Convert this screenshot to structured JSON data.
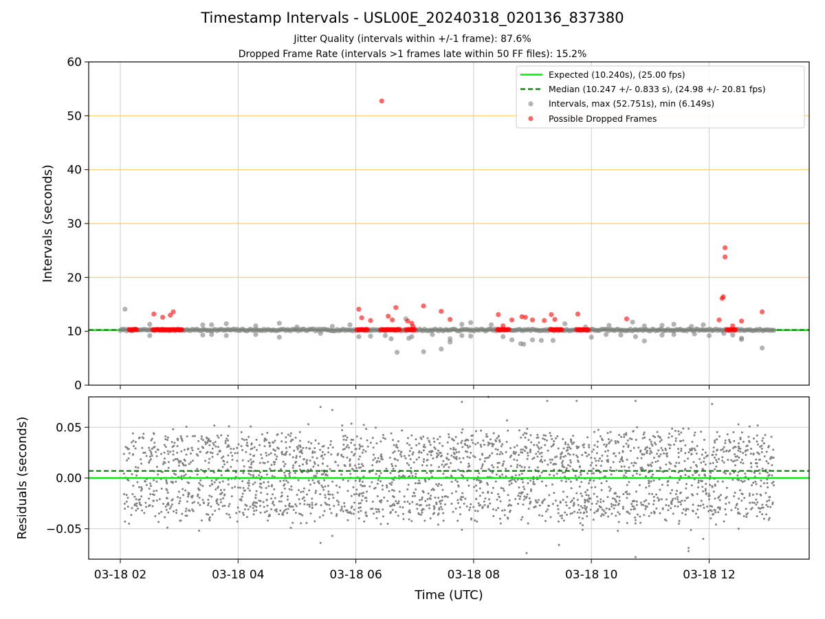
{
  "page": {
    "title": "Timestamp Intervals - USL00E_20240318_020136_837380",
    "subtitle_1": "Jitter Quality (intervals within +/-1 frame): 87.6%",
    "subtitle_2": "Dropped Frame Rate (intervals >1 frames late within 50 FF files): 15.2%"
  },
  "colors": {
    "expected": "#00ee00",
    "median": "#007700",
    "intervals": "#808080",
    "dropped": "#ff0000",
    "threshold_grid": "#ffcc66",
    "grid": "#cccccc"
  },
  "chart_data": [
    {
      "type": "scatter",
      "panel": "top",
      "xlabel": "",
      "ylabel": "Intervals (seconds)",
      "ylim": [
        0,
        60
      ],
      "y_ticks": [
        "0",
        "10",
        "20",
        "30",
        "40",
        "50",
        "60"
      ],
      "x_range_hours": [
        1.7,
        13.85
      ],
      "x_ticks": [
        "03-18 02",
        "03-18 04",
        "03-18 06",
        "03-18 08",
        "03-18 10",
        "03-18 12"
      ],
      "grid": true,
      "legend_position": "top-right",
      "reference_lines": [
        {
          "name": "Expected (10.240s), (25.00 fps)",
          "y": 10.24,
          "style": "solid",
          "color": "#00ee00"
        },
        {
          "name": "Median (10.247 +/- 0.833 s), (24.98 +/- 20.81 fps)",
          "y": 10.247,
          "style": "dashed",
          "color": "#007700"
        }
      ],
      "series": [
        {
          "name": "Intervals, max (52.751s), min (6.149s)",
          "color": "#808080",
          "baseline": 10.24,
          "baseline_time_range": [
            2.0,
            13.1
          ],
          "points": [
            [
              2.08,
              14.1
            ],
            [
              2.5,
              11.3
            ],
            [
              2.5,
              9.2
            ],
            [
              3.4,
              11.2
            ],
            [
              3.4,
              9.3
            ],
            [
              3.55,
              11.2
            ],
            [
              3.55,
              9.4
            ],
            [
              3.8,
              11.4
            ],
            [
              3.8,
              9.2
            ],
            [
              4.3,
              11.0
            ],
            [
              4.3,
              9.4
            ],
            [
              4.7,
              11.5
            ],
            [
              4.7,
              8.9
            ],
            [
              5.0,
              10.8
            ],
            [
              5.4,
              9.6
            ],
            [
              5.6,
              10.9
            ],
            [
              5.9,
              11.2
            ],
            [
              6.05,
              9.0
            ],
            [
              6.25,
              9.1
            ],
            [
              6.5,
              9.2
            ],
            [
              6.6,
              8.6
            ],
            [
              6.7,
              6.1
            ],
            [
              6.85,
              12.3
            ],
            [
              6.9,
              8.7
            ],
            [
              6.95,
              9.0
            ],
            [
              7.15,
              6.2
            ],
            [
              7.3,
              9.4
            ],
            [
              7.45,
              6.7
            ],
            [
              7.6,
              8.6
            ],
            [
              7.6,
              8.0
            ],
            [
              7.8,
              11.3
            ],
            [
              7.8,
              9.2
            ],
            [
              7.95,
              11.6
            ],
            [
              7.95,
              9.1
            ],
            [
              8.3,
              11.2
            ],
            [
              8.5,
              9.0
            ],
            [
              8.65,
              8.4
            ],
            [
              8.8,
              7.7
            ],
            [
              8.85,
              7.6
            ],
            [
              9.0,
              8.4
            ],
            [
              9.15,
              8.3
            ],
            [
              9.35,
              8.3
            ],
            [
              9.55,
              11.4
            ],
            [
              9.9,
              10.8
            ],
            [
              10.0,
              8.9
            ],
            [
              10.25,
              9.4
            ],
            [
              10.3,
              11.1
            ],
            [
              10.5,
              9.3
            ],
            [
              10.7,
              11.7
            ],
            [
              10.75,
              9.0
            ],
            [
              10.9,
              8.2
            ],
            [
              10.9,
              11.0
            ],
            [
              11.2,
              9.3
            ],
            [
              11.2,
              11.1
            ],
            [
              11.4,
              11.3
            ],
            [
              11.4,
              9.4
            ],
            [
              11.7,
              10.9
            ],
            [
              11.75,
              9.5
            ],
            [
              11.9,
              11.2
            ],
            [
              12.0,
              9.2
            ],
            [
              12.25,
              9.6
            ],
            [
              12.4,
              9.3
            ],
            [
              12.55,
              8.7
            ],
            [
              12.55,
              8.5
            ],
            [
              12.9,
              6.9
            ]
          ]
        },
        {
          "name": "Possible Dropped Frames",
          "color": "#ff0000",
          "cluster_y": 10.3,
          "clusters": [
            [
              2.15,
              2.28
            ],
            [
              2.55,
              3.05
            ],
            [
              6.02,
              6.2
            ],
            [
              6.42,
              6.75
            ],
            [
              6.85,
              7.0
            ],
            [
              8.4,
              8.6
            ],
            [
              9.3,
              9.5
            ],
            [
              9.75,
              9.95
            ],
            [
              12.3,
              12.45
            ]
          ],
          "points": [
            [
              2.57,
              13.2
            ],
            [
              2.72,
              12.6
            ],
            [
              2.85,
              13.0
            ],
            [
              2.9,
              13.6
            ],
            [
              6.05,
              14.1
            ],
            [
              6.1,
              12.5
            ],
            [
              6.25,
              12.0
            ],
            [
              6.44,
              52.75
            ],
            [
              6.55,
              12.8
            ],
            [
              6.62,
              12.1
            ],
            [
              6.68,
              14.4
            ],
            [
              6.88,
              11.9
            ],
            [
              6.95,
              11.5
            ],
            [
              6.97,
              10.9
            ],
            [
              7.15,
              14.7
            ],
            [
              7.45,
              13.7
            ],
            [
              7.6,
              12.2
            ],
            [
              8.42,
              13.1
            ],
            [
              8.5,
              11.0
            ],
            [
              8.65,
              12.1
            ],
            [
              8.82,
              12.7
            ],
            [
              8.88,
              12.6
            ],
            [
              9.0,
              12.1
            ],
            [
              9.2,
              12.0
            ],
            [
              9.32,
              13.1
            ],
            [
              9.38,
              12.2
            ],
            [
              9.77,
              13.2
            ],
            [
              10.6,
              12.3
            ],
            [
              12.17,
              12.1
            ],
            [
              12.22,
              16.1
            ],
            [
              12.24,
              16.4
            ],
            [
              12.27,
              25.5
            ],
            [
              12.27,
              23.8
            ],
            [
              12.4,
              11.0
            ],
            [
              12.55,
              11.9
            ],
            [
              12.9,
              13.6
            ]
          ]
        }
      ]
    },
    {
      "type": "scatter",
      "panel": "bottom",
      "xlabel": "Time (UTC)",
      "ylabel": "Residuals (seconds)",
      "ylim": [
        -0.08,
        0.08
      ],
      "y_ticks": [
        "−0.05",
        "0.00",
        "0.05"
      ],
      "x_ticks": [
        "03-18 02",
        "03-18 04",
        "03-18 06",
        "03-18 08",
        "03-18 10",
        "03-18 12"
      ],
      "grid": true,
      "reference_lines": [
        {
          "name": "Expected",
          "y": 0.0,
          "style": "solid",
          "color": "#00ee00"
        },
        {
          "name": "Median",
          "y": 0.007,
          "style": "dashed",
          "color": "#007700"
        }
      ],
      "series": [
        {
          "name": "Residuals",
          "color": "#808080",
          "time_range": [
            2.05,
            13.1
          ],
          "count": 2600,
          "level_fractions": {
            "1.0": 0.37,
            "0.0": 0.31
          },
          "level_values": [
            0.0,
            0.02,
            0.04,
            -0.02,
            -0.04
          ],
          "spread": 0.014,
          "outliers": [
            [
              2.08,
              -0.043
            ],
            [
              2.8,
              -0.049
            ],
            [
              5.4,
              -0.064
            ],
            [
              5.6,
              -0.057
            ],
            [
              5.4,
              0.07
            ],
            [
              5.6,
              0.067
            ],
            [
              7.8,
              -0.051
            ],
            [
              7.8,
              0.075
            ],
            [
              8.25,
              0.08
            ],
            [
              8.9,
              -0.074
            ],
            [
              9.25,
              0.076
            ],
            [
              9.45,
              -0.066
            ],
            [
              9.75,
              0.076
            ],
            [
              9.85,
              -0.051
            ],
            [
              10.45,
              -0.052
            ],
            [
              10.75,
              0.076
            ],
            [
              10.75,
              -0.078
            ],
            [
              11.65,
              -0.072
            ],
            [
              11.65,
              -0.069
            ],
            [
              11.9,
              -0.06
            ],
            [
              12.05,
              0.073
            ],
            [
              12.5,
              -0.05
            ]
          ]
        }
      ]
    }
  ]
}
